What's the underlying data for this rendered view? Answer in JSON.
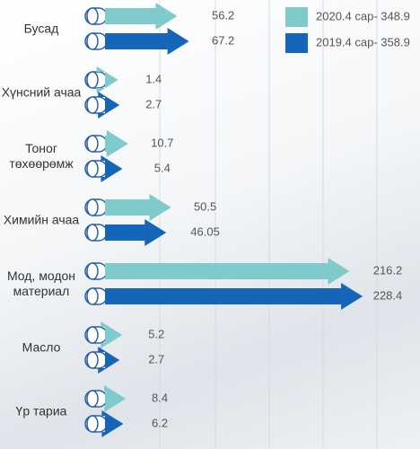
{
  "chart_data": {
    "type": "arrow-bar",
    "categories": [
      "Бусад",
      "Хүнсний ачаа",
      "Тоног төхөөрөмж",
      "Химийн ачаа",
      "Мод, модон материал",
      "Масло",
      "Үр тариа"
    ],
    "series": [
      {
        "name": "2020.4 сар- 348.9",
        "color": "#7fcacb",
        "values": [
          56.2,
          1.4,
          10.7,
          50.5,
          216.2,
          5.2,
          8.4
        ]
      },
      {
        "name": "2019.4 сар- 358.9",
        "color": "#1565b8",
        "values": [
          67.2,
          2.7,
          5.4,
          46.05,
          228.4,
          2.7,
          6.2
        ]
      }
    ],
    "legend": "top-right"
  }
}
